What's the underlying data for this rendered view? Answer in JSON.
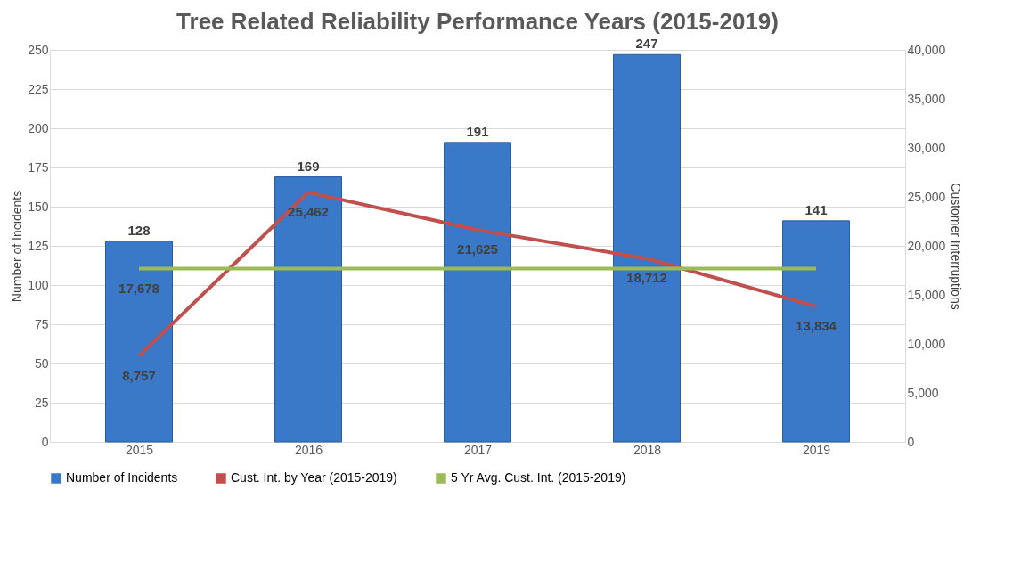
{
  "chart_data": {
    "type": "bar",
    "title": "Tree Related Reliability Performance Years (2015-2019)",
    "categories": [
      "2015",
      "2016",
      "2017",
      "2018",
      "2019"
    ],
    "ylabel": "Number of Incidents",
    "y2label": "Customer Interruptions",
    "ylim": [
      0,
      250
    ],
    "yticks": [
      0,
      25,
      50,
      75,
      100,
      125,
      150,
      175,
      200,
      225,
      250
    ],
    "y2lim": [
      0,
      40000
    ],
    "y2ticks": [
      {
        "value": 0,
        "label": "0"
      },
      {
        "value": 5000,
        "label": "5,000"
      },
      {
        "value": 10000,
        "label": "10,000"
      },
      {
        "value": 15000,
        "label": "15,000"
      },
      {
        "value": 20000,
        "label": "20,000"
      },
      {
        "value": 25000,
        "label": "25,000"
      },
      {
        "value": 30000,
        "label": "30,000"
      },
      {
        "value": 35000,
        "label": "35,000"
      },
      {
        "value": 40000,
        "label": "40,000"
      }
    ],
    "grid": "y",
    "legend": "bottom",
    "series": [
      {
        "name": "Number of Incidents",
        "color": "#3a78c8",
        "values": [
          128,
          169,
          191,
          247,
          141
        ],
        "value_labels": [
          "128",
          "169",
          "191",
          "247",
          "141"
        ]
      },
      {
        "name": "Cust. Int. by Year (2015-2019)",
        "type": "line",
        "axis": "y2",
        "color": "#c0504d",
        "values": [
          8757,
          25462,
          21625,
          18712,
          13834
        ],
        "value_labels": [
          "8,757",
          "25,462",
          "21,625",
          "18,712",
          "13,834"
        ]
      },
      {
        "name": "5 Yr Avg. Cust. Int. (2015-2019)",
        "type": "line",
        "axis": "y2",
        "color": "#9bbb59",
        "values": [
          17678,
          17678,
          17678,
          17678,
          17678
        ],
        "value_labels": [
          "17,678",
          null,
          null,
          null,
          null
        ]
      }
    ]
  }
}
